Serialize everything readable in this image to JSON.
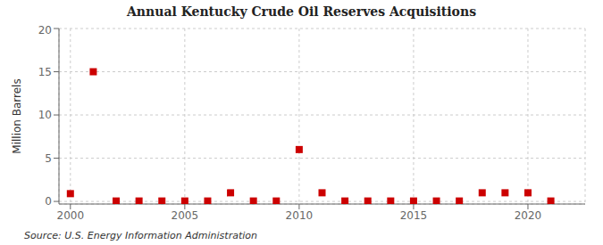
{
  "chart_data": {
    "type": "scatter",
    "title": "Annual Kentucky Crude Oil Reserves Acquisitions",
    "ylabel": "Million Barrels",
    "source": "Source: U.S. Energy Information Administration",
    "x": [
      2000,
      2001,
      2002,
      2003,
      2004,
      2005,
      2006,
      2007,
      2008,
      2009,
      2010,
      2011,
      2012,
      2013,
      2014,
      2015,
      2016,
      2017,
      2018,
      2019,
      2020,
      2021
    ],
    "values": [
      0.9,
      15.0,
      0.05,
      0.05,
      0.05,
      0.05,
      0.05,
      1.0,
      0.05,
      0.05,
      6.0,
      1.0,
      0.05,
      0.05,
      0.05,
      0.05,
      0.05,
      0.05,
      1.0,
      1.0,
      1.0,
      0.05
    ],
    "color": "#cc0000",
    "marker": "square",
    "xlim": [
      1999.5,
      2022.5
    ],
    "ylim": [
      -0.3,
      20
    ],
    "xticks": [
      2000,
      2005,
      2010,
      2015,
      2020
    ],
    "yticks": [
      0,
      5,
      10,
      15,
      20
    ],
    "grid": true
  }
}
